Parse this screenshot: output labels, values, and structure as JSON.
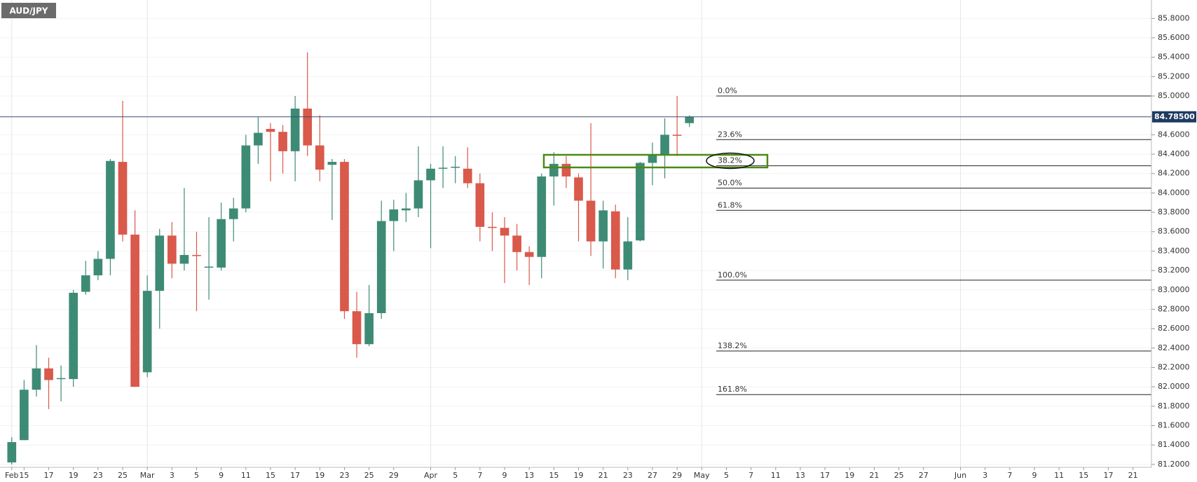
{
  "chart_data": {
    "type": "candlestick",
    "title": "AUD/JPY",
    "categories": [
      "Feb",
      "15",
      null,
      "17",
      null,
      "19",
      null,
      "23",
      null,
      "25",
      null,
      "Mar",
      null,
      "3",
      null,
      "5",
      null,
      "9",
      null,
      "11",
      null,
      "15",
      null,
      "17",
      null,
      "19",
      null,
      "23",
      null,
      "25",
      null,
      "29",
      null,
      null,
      "Apr",
      null,
      "5",
      null,
      "7",
      null,
      "9",
      null,
      "13",
      null,
      "15",
      null,
      "19",
      null,
      "21",
      null,
      "23",
      null,
      "27",
      null,
      "29",
      null,
      "May",
      null,
      "5",
      null,
      "7",
      null,
      "11",
      null,
      "13",
      null,
      "17",
      null,
      "19",
      null,
      "21",
      null,
      "25",
      null,
      "27",
      null,
      null,
      "Jun",
      null,
      "3",
      null,
      "7",
      null,
      "9",
      null,
      "11",
      null,
      "15",
      null,
      "17",
      null,
      "21",
      null
    ],
    "open": [
      81.22,
      81.45,
      81.97,
      82.19,
      82.08,
      82.08,
      82.98,
      83.15,
      83.32,
      84.32,
      83.57,
      82.15,
      82.99,
      83.56,
      83.27,
      83.36,
      83.23,
      83.23,
      83.73,
      83.84,
      84.49,
      84.66,
      84.63,
      84.43,
      84.87,
      84.49,
      84.29,
      84.32,
      82.78,
      82.44,
      82.76,
      83.71,
      83.82,
      83.84,
      84.13,
      84.25,
      84.26,
      84.25,
      84.1,
      83.65,
      83.64,
      83.56,
      83.39,
      83.34,
      84.17,
      84.3,
      84.16,
      83.92,
      83.5,
      83.81,
      83.21,
      83.51,
      84.31,
      84.4,
      84.6,
      84.72,
      null,
      null,
      null,
      null,
      null,
      null,
      null,
      null,
      null,
      null,
      null,
      null,
      null,
      null,
      null,
      null,
      null,
      null,
      null,
      null,
      null,
      null,
      null,
      null,
      null,
      null,
      null,
      null,
      null,
      null,
      null,
      null,
      null,
      null,
      null,
      null,
      null
    ],
    "high": [
      81.48,
      82.07,
      82.43,
      82.3,
      82.22,
      83.0,
      83.3,
      83.4,
      84.35,
      84.95,
      83.82,
      83.15,
      83.63,
      83.7,
      84.05,
      83.6,
      83.75,
      83.9,
      83.95,
      84.6,
      84.78,
      84.72,
      84.7,
      85.0,
      85.45,
      84.8,
      84.35,
      84.35,
      82.98,
      83.05,
      83.92,
      83.93,
      84.0,
      84.48,
      84.3,
      84.48,
      84.38,
      84.47,
      84.2,
      83.8,
      83.75,
      83.68,
      83.45,
      84.2,
      84.42,
      84.38,
      84.2,
      84.72,
      83.92,
      83.88,
      83.75,
      84.32,
      84.52,
      84.77,
      85.0,
      84.8,
      null,
      null,
      null,
      null,
      null,
      null,
      null,
      null,
      null,
      null,
      null,
      null,
      null,
      null,
      null,
      null,
      null,
      null,
      null,
      null,
      null,
      null,
      null,
      null,
      null,
      null,
      null,
      null,
      null,
      null,
      null,
      null,
      null,
      null,
      null,
      null,
      null
    ],
    "low": [
      81.2,
      81.45,
      81.9,
      81.77,
      81.85,
      82.0,
      82.95,
      83.1,
      83.15,
      83.5,
      82.0,
      82.1,
      82.6,
      83.12,
      83.2,
      82.78,
      82.9,
      83.2,
      83.5,
      83.8,
      84.3,
      84.12,
      84.2,
      84.12,
      84.38,
      84.12,
      83.72,
      82.7,
      82.3,
      82.42,
      82.7,
      83.4,
      83.7,
      83.75,
      83.43,
      84.05,
      84.1,
      84.05,
      83.5,
      83.4,
      83.07,
      83.2,
      83.05,
      83.12,
      83.87,
      84.05,
      83.5,
      83.35,
      83.22,
      83.12,
      83.1,
      83.5,
      84.08,
      84.15,
      84.38,
      84.68,
      null,
      null,
      null,
      null,
      null,
      null,
      null,
      null,
      null,
      null,
      null,
      null,
      null,
      null,
      null,
      null,
      null,
      null,
      null,
      null,
      null,
      null,
      null,
      null,
      null,
      null,
      null,
      null,
      null,
      null,
      null,
      null,
      null,
      null,
      null,
      null,
      null
    ],
    "close": [
      81.43,
      81.97,
      82.19,
      82.07,
      82.09,
      82.97,
      83.15,
      83.32,
      84.33,
      83.57,
      82.0,
      82.99,
      83.56,
      83.27,
      83.36,
      83.35,
      83.24,
      83.73,
      83.84,
      84.49,
      84.62,
      84.63,
      84.43,
      84.87,
      84.49,
      84.24,
      84.32,
      82.78,
      82.44,
      82.76,
      83.71,
      83.83,
      83.84,
      84.13,
      84.25,
      84.26,
      84.27,
      84.1,
      83.65,
      83.64,
      83.56,
      83.39,
      83.34,
      84.17,
      84.3,
      84.17,
      83.92,
      83.5,
      83.82,
      83.21,
      83.5,
      84.31,
      84.4,
      84.6,
      84.59,
      84.785,
      null,
      null,
      null,
      null,
      null,
      null,
      null,
      null,
      null,
      null,
      null,
      null,
      null,
      null,
      null,
      null,
      null,
      null,
      null,
      null,
      null,
      null,
      null,
      null,
      null,
      null,
      null,
      null,
      null,
      null,
      null,
      null,
      null,
      null,
      null,
      null,
      null
    ],
    "up_color": "#3e8b75",
    "down_color": "#d9594b",
    "ylim": [
      81.17,
      85.99
    ],
    "yticks": [
      {
        "value": 81.2,
        "label": "81.2000"
      },
      {
        "value": 81.4,
        "label": "81.4000"
      },
      {
        "value": 81.6,
        "label": "81.6000"
      },
      {
        "value": 81.8,
        "label": "81.8000"
      },
      {
        "value": 82.0,
        "label": "82.0000"
      },
      {
        "value": 82.2,
        "label": "82.2000"
      },
      {
        "value": 82.4,
        "label": "82.4000"
      },
      {
        "value": 82.6,
        "label": "82.6000"
      },
      {
        "value": 82.8,
        "label": "82.8000"
      },
      {
        "value": 83.0,
        "label": "83.0000"
      },
      {
        "value": 83.2,
        "label": "83.2000"
      },
      {
        "value": 83.4,
        "label": "83.4000"
      },
      {
        "value": 83.6,
        "label": "83.6000"
      },
      {
        "value": 83.8,
        "label": "83.8000"
      },
      {
        "value": 84.0,
        "label": "84.0000"
      },
      {
        "value": 84.2,
        "label": "84.2000"
      },
      {
        "value": 84.4,
        "label": "84.4000"
      },
      {
        "value": 84.6,
        "label": "84.6000"
      },
      {
        "value": 84.8,
        "label": "84.8000"
      },
      {
        "value": 85.0,
        "label": "85.0000"
      },
      {
        "value": 85.2,
        "label": "85.2000"
      },
      {
        "value": 85.4,
        "label": "85.4000"
      },
      {
        "value": 85.6,
        "label": "85.6000"
      },
      {
        "value": 85.8,
        "label": "85.8000"
      }
    ],
    "last_price": {
      "value": 84.785,
      "label": "84.78500"
    },
    "fib_levels": [
      {
        "label": "0.0%",
        "price": 85.0
      },
      {
        "label": "23.6%",
        "price": 84.55
      },
      {
        "label": "38.2%",
        "price": 84.28
      },
      {
        "label": "50.0%",
        "price": 84.05
      },
      {
        "label": "61.8%",
        "price": 83.82
      },
      {
        "label": "100.0%",
        "price": 83.1
      },
      {
        "label": "138.2%",
        "price": 82.37
      },
      {
        "label": "161.8%",
        "price": 81.92
      }
    ],
    "grid": true
  }
}
